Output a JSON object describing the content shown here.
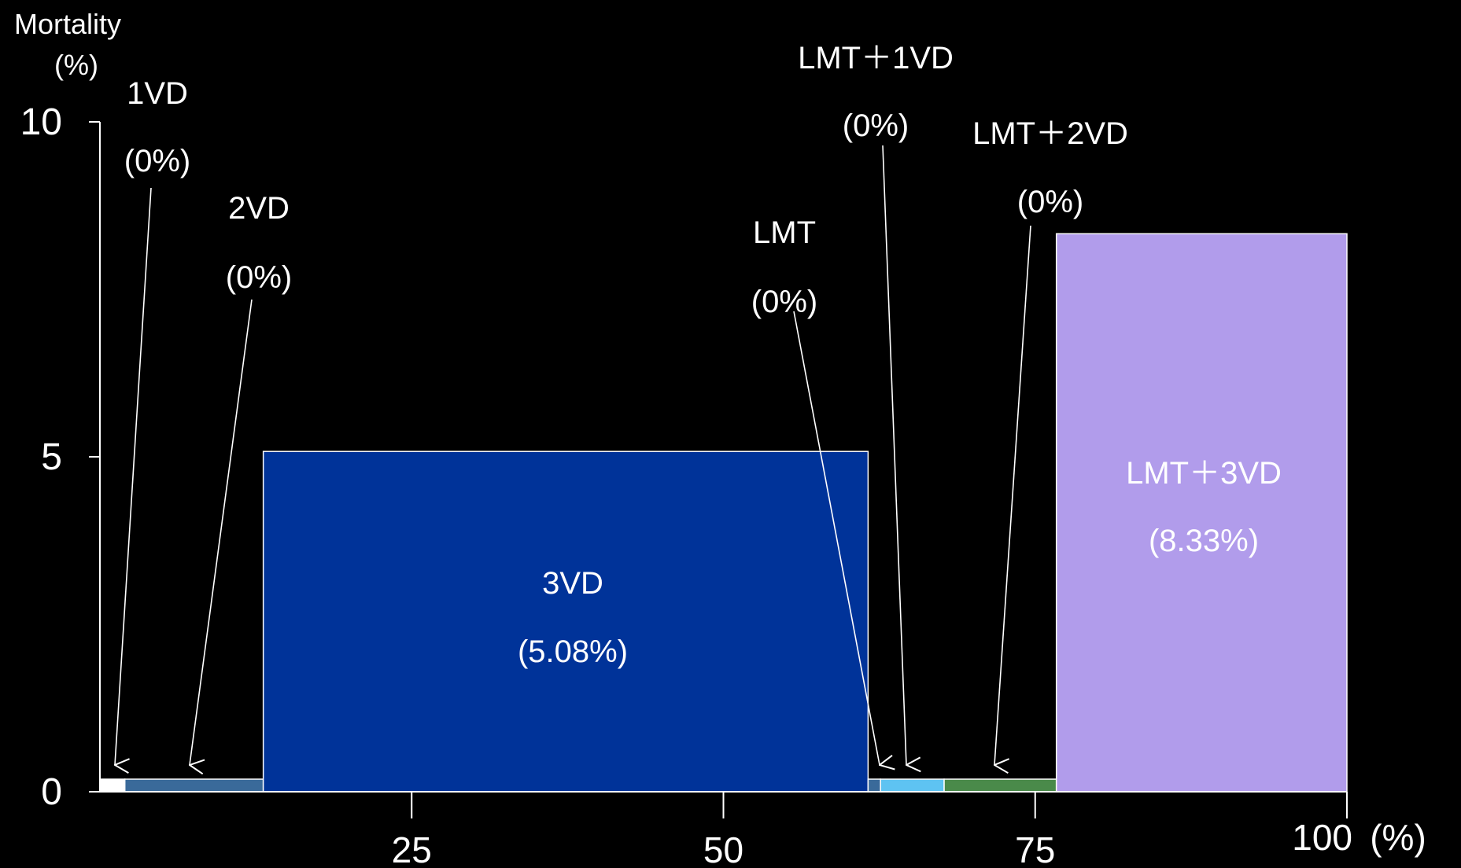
{
  "chart_data": {
    "type": "bar",
    "ylabel_line1": "Mortality",
    "ylabel_line2": "(%)",
    "x_unit": "(%)",
    "xlim": [
      0,
      100
    ],
    "ylim": [
      0,
      10
    ],
    "x_ticks": [
      25,
      50,
      75,
      100
    ],
    "y_ticks": [
      0,
      5,
      10
    ],
    "grid": false,
    "segments": [
      {
        "name": "1VD",
        "pct_label": "(0%)",
        "x0": 0,
        "x1": 2.0,
        "mortality": 0,
        "color": "#ffffff"
      },
      {
        "name": "2VD",
        "pct_label": "(0%)",
        "x0": 2.0,
        "x1": 13.1,
        "mortality": 0,
        "color": "#3a6a9a"
      },
      {
        "name": "3VD",
        "pct_label": "(5.08%)",
        "x0": 13.1,
        "x1": 61.6,
        "mortality": 5.08,
        "color": "#003399"
      },
      {
        "name": "LMT",
        "pct_label": "(0%)",
        "x0": 61.6,
        "x1": 62.6,
        "mortality": 0,
        "color": "#3a6a9a"
      },
      {
        "name": "LMT＋1VD",
        "pct_label": "(0%)",
        "x0": 62.6,
        "x1": 67.7,
        "mortality": 0,
        "color": "#5ec3f2"
      },
      {
        "name": "LMT＋2VD",
        "pct_label": "(0%)",
        "x0": 67.7,
        "x1": 76.7,
        "mortality": 0,
        "color": "#4a8a4a"
      },
      {
        "name": "LMT＋3VD",
        "pct_label": "(8.33%)",
        "x0": 76.7,
        "x1": 100,
        "mortality": 8.33,
        "color": "#b19ceb"
      }
    ]
  }
}
